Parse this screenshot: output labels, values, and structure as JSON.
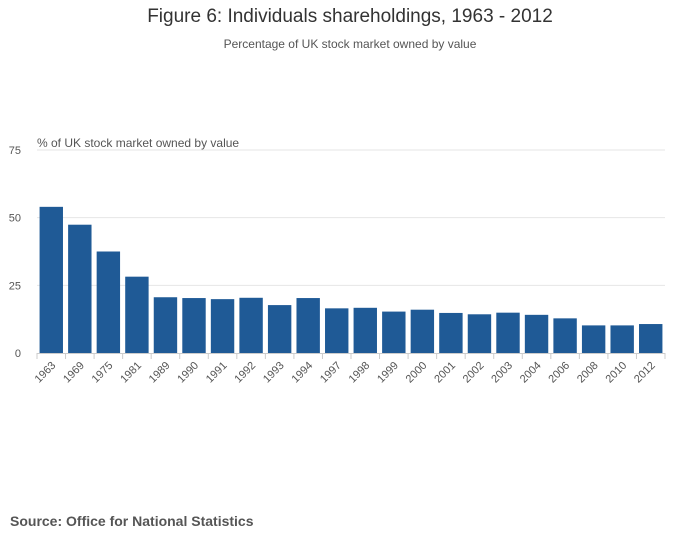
{
  "title": "Figure 6: Individuals shareholdings, 1963 - 2012",
  "subtitle": "Percentage of UK stock market owned by value",
  "source": "Source: Office for National Statistics",
  "chart_data": {
    "type": "bar",
    "categories": [
      "1963",
      "1969",
      "1975",
      "1981",
      "1989",
      "1990",
      "1991",
      "1992",
      "1993",
      "1994",
      "1997",
      "1998",
      "1999",
      "2000",
      "2001",
      "2002",
      "2003",
      "2004",
      "2006",
      "2008",
      "2010",
      "2012"
    ],
    "series": [
      {
        "values": [
          54.0,
          47.4,
          37.5,
          28.2,
          20.6,
          20.3,
          19.9,
          20.4,
          17.7,
          20.3,
          16.5,
          16.7,
          15.3,
          16.0,
          14.8,
          14.3,
          14.9,
          14.1,
          12.8,
          10.2,
          10.2,
          10.7
        ],
        "color": "#1f5a96"
      }
    ],
    "ylabel": "% of UK stock market owned by value",
    "ylim": [
      0,
      75
    ],
    "yticks": [
      0,
      25,
      50,
      75
    ],
    "grid": true
  }
}
